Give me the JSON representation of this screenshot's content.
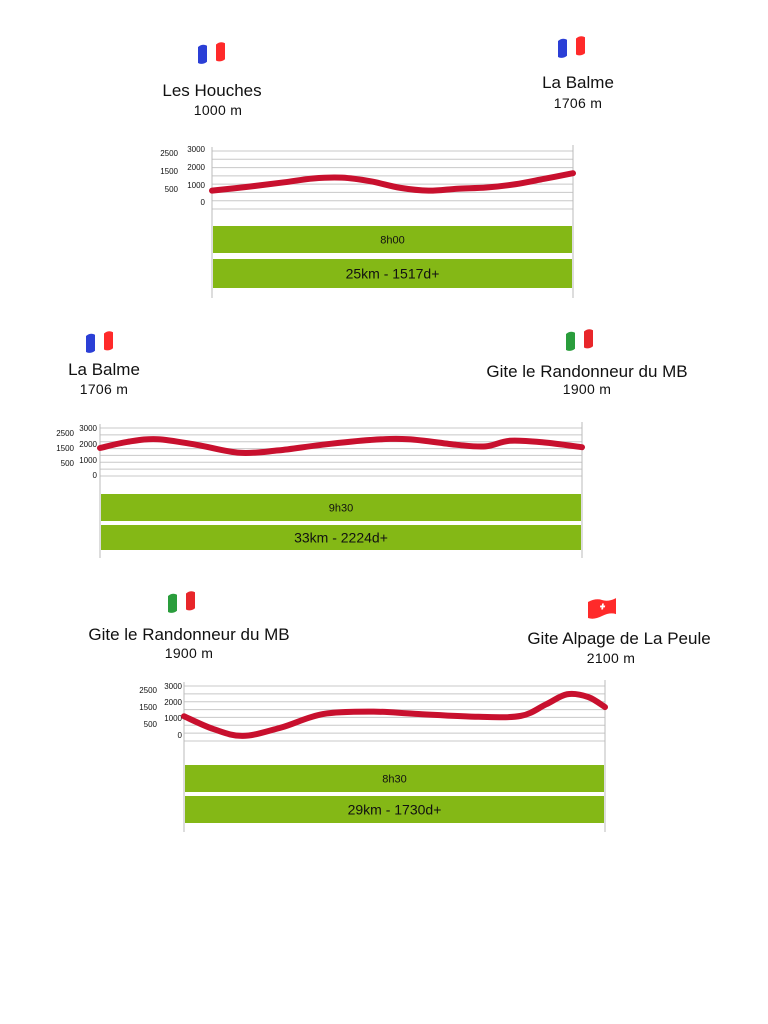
{
  "colors": {
    "profile": "#c8102e",
    "bar": "#84b816",
    "grid": "#c8c8c8",
    "flag_fr": [
      "#2b3fd6",
      "#ffffff",
      "#ff2a2a"
    ],
    "flag_it": [
      "#2a9d3c",
      "#ffffff",
      "#e8262a"
    ],
    "flag_ch": [
      "#ff2a2a",
      "#ffffff"
    ]
  },
  "chart_data": [
    {
      "type": "line",
      "start": {
        "name": "Les Houches",
        "altitude": "1000 m",
        "flag": "fr-flag-icon"
      },
      "end": {
        "name": "La Balme",
        "altitude": "1706 m",
        "flag": "fr-flag-icon"
      },
      "y_ticks_left": [
        "2500",
        "1500",
        "500"
      ],
      "y_ticks_right": [
        "3000",
        "2000",
        "1000",
        "0"
      ],
      "x_relative": [
        0,
        0.1,
        0.2,
        0.28,
        0.36,
        0.44,
        0.52,
        0.6,
        0.68,
        0.76,
        0.84,
        0.92,
        1
      ],
      "elevation_m": [
        950,
        1150,
        1380,
        1580,
        1620,
        1430,
        1100,
        950,
        1050,
        1110,
        1280,
        1560,
        1850
      ],
      "ylim": [
        0,
        3000
      ],
      "time": "8h00",
      "summary": "25km - 1517d+"
    },
    {
      "type": "line",
      "start": {
        "name": "La Balme",
        "altitude": "1706 m",
        "flag": "fr-flag-icon"
      },
      "end": {
        "name": "Gite le Randonneur du MB",
        "altitude": "1900 m",
        "flag": "it-flag-icon"
      },
      "y_ticks_left": [
        "2500",
        "1500",
        "500"
      ],
      "y_ticks_right": [
        "3000",
        "2000",
        "1000",
        "0"
      ],
      "x_relative": [
        0,
        0.06,
        0.12,
        0.2,
        0.29,
        0.37,
        0.46,
        0.56,
        0.64,
        0.74,
        0.8,
        0.85,
        0.92,
        1
      ],
      "elevation_m": [
        1750,
        2150,
        2300,
        1950,
        1450,
        1600,
        1950,
        2250,
        2300,
        1950,
        1850,
        2200,
        2100,
        1800
      ],
      "ylim": [
        0,
        3000
      ],
      "time": "9h30",
      "summary": "33km - 2224d+"
    },
    {
      "type": "line",
      "start": {
        "name": "Gite le Randonneur du MB",
        "altitude": "1900 m",
        "flag": "it-flag-icon"
      },
      "end": {
        "name": "Gite Alpage de La Peule",
        "altitude": "2100 m",
        "flag": "ch-flag-icon"
      },
      "y_ticks_left": [
        "2500",
        "1500",
        "500"
      ],
      "y_ticks_right": [
        "3000",
        "2000",
        "1000",
        "0"
      ],
      "x_relative": [
        0,
        0.07,
        0.14,
        0.23,
        0.33,
        0.45,
        0.55,
        0.7,
        0.8,
        0.86,
        0.91,
        0.96,
        1
      ],
      "elevation_m": [
        1350,
        650,
        280,
        730,
        1470,
        1600,
        1480,
        1320,
        1370,
        2000,
        2550,
        2400,
        1850
      ],
      "ylim": [
        0,
        3000
      ],
      "time": "8h30",
      "summary": "29km - 1730d+"
    }
  ]
}
